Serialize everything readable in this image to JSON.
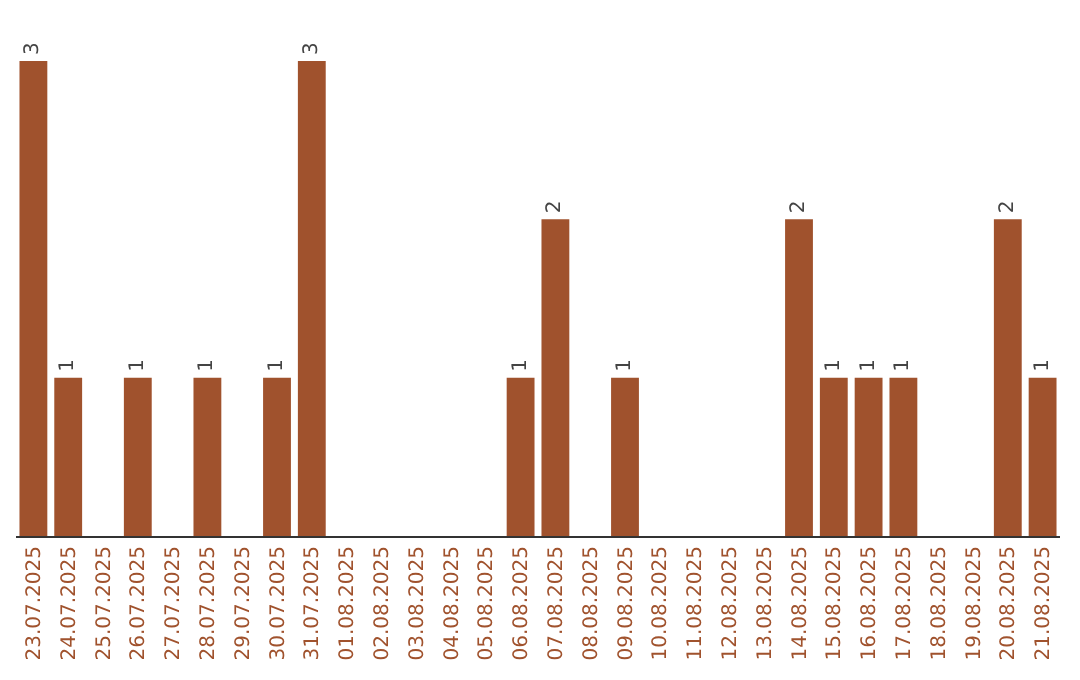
{
  "chart_data": {
    "type": "bar",
    "categories": [
      "23.07.2025",
      "24.07.2025",
      "25.07.2025",
      "26.07.2025",
      "27.07.2025",
      "28.07.2025",
      "29.07.2025",
      "30.07.2025",
      "31.07.2025",
      "01.08.2025",
      "02.08.2025",
      "03.08.2025",
      "04.08.2025",
      "05.08.2025",
      "06.08.2025",
      "07.08.2025",
      "08.08.2025",
      "09.08.2025",
      "10.08.2025",
      "11.08.2025",
      "12.08.2025",
      "13.08.2025",
      "14.08.2025",
      "15.08.2025",
      "16.08.2025",
      "17.08.2025",
      "18.08.2025",
      "19.08.2025",
      "20.08.2025",
      "21.08.2025"
    ],
    "values": [
      3,
      1,
      0,
      1,
      0,
      1,
      0,
      1,
      3,
      0,
      0,
      0,
      0,
      0,
      1,
      2,
      0,
      1,
      0,
      0,
      0,
      0,
      2,
      1,
      1,
      1,
      0,
      0,
      2,
      1
    ],
    "value_labels": [
      "3",
      "1",
      null,
      "1",
      null,
      "1",
      null,
      "1",
      "3",
      null,
      null,
      null,
      null,
      null,
      "1",
      "2",
      null,
      "1",
      null,
      null,
      null,
      null,
      "2",
      "1",
      "1",
      "1",
      null,
      null,
      "2",
      "1"
    ],
    "color": "#a0522d"
  }
}
